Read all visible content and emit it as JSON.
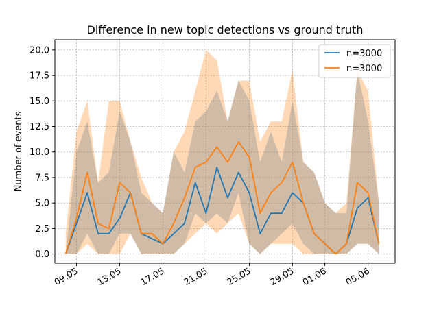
{
  "chart_data": {
    "type": "line",
    "title": "Difference in new topic detections vs ground truth",
    "xlabel": "",
    "ylabel": "Number of events",
    "ylim": [
      -0.9,
      21
    ],
    "xlim": [
      0,
      31.5
    ],
    "x_tick_labels": [
      "09.05",
      "13.05",
      "17.05",
      "21.05",
      "25.05",
      "29.05",
      "01.06",
      "05.06"
    ],
    "x_tick_dates": [
      "2019-05-09",
      "2019-05-13",
      "2019-05-17",
      "2019-05-21",
      "2019-05-25",
      "2019-05-29",
      "2019-06-01",
      "2019-06-05"
    ],
    "y_ticks": [
      0.0,
      2.5,
      5.0,
      7.5,
      10.0,
      12.5,
      15.0,
      17.5,
      20.0
    ],
    "y_tick_labels": [
      "0.0",
      "2.5",
      "5.0",
      "7.5",
      "10.0",
      "12.5",
      "15.0",
      "17.5",
      "20.0"
    ],
    "grid": true,
    "legend_position": "top-right",
    "x": [
      "2019-05-08",
      "2019-05-09",
      "2019-05-10",
      "2019-05-11",
      "2019-05-12",
      "2019-05-13",
      "2019-05-14",
      "2019-05-15",
      "2019-05-16",
      "2019-05-17",
      "2019-05-18",
      "2019-05-19",
      "2019-05-20",
      "2019-05-21",
      "2019-05-22",
      "2019-05-23",
      "2019-05-24",
      "2019-05-25",
      "2019-05-26",
      "2019-05-27",
      "2019-05-28",
      "2019-05-29",
      "2019-05-30",
      "2019-05-31",
      "2019-06-01",
      "2019-06-02",
      "2019-06-03",
      "2019-06-04",
      "2019-06-05",
      "2019-06-06",
      "2019-06-07"
    ],
    "series": [
      {
        "name": "n=3000",
        "color": "#1f77b4",
        "values": [
          0,
          3,
          6,
          2,
          2,
          3.5,
          6,
          2,
          1.5,
          1,
          2,
          3,
          7,
          4,
          8.5,
          5.5,
          8,
          6,
          2,
          4,
          4,
          6,
          5,
          2,
          1,
          0,
          1,
          4.5,
          5.5,
          1,
          null
        ],
        "lower": [
          0,
          0,
          2,
          0,
          0,
          2,
          2,
          0,
          0,
          0,
          0,
          1,
          4,
          3,
          4,
          3,
          6,
          1,
          0,
          1,
          2,
          3,
          1,
          0,
          0,
          0,
          0,
          1,
          1,
          0,
          null
        ],
        "upper": [
          0,
          10,
          13,
          7,
          8,
          14,
          11,
          6,
          5,
          4,
          10,
          8,
          13,
          14,
          16,
          13,
          17,
          15,
          9,
          12,
          9,
          15,
          9,
          8,
          5,
          4,
          4,
          18,
          13,
          5,
          null
        ]
      },
      {
        "name": "n=3000",
        "color": "#ff7f0e",
        "values": [
          0,
          3.5,
          8,
          3,
          2.5,
          7,
          6,
          2,
          2,
          1,
          3,
          5.5,
          8.5,
          9,
          10.5,
          9,
          11,
          9.5,
          4,
          6,
          7,
          9,
          5,
          2,
          1,
          0,
          1,
          7,
          6,
          1,
          null
        ],
        "lower": [
          0,
          0,
          1,
          0,
          0,
          0,
          2,
          0,
          0,
          0,
          0,
          1,
          2,
          3,
          2,
          3,
          4,
          1,
          0,
          1,
          1,
          1,
          0,
          0,
          0,
          0,
          0,
          1,
          1,
          0,
          null
        ],
        "upper": [
          2,
          12,
          15,
          7,
          15,
          15,
          11,
          7.5,
          5,
          4,
          10,
          12,
          16,
          20,
          19,
          13,
          17,
          17,
          11,
          13,
          13,
          18,
          9,
          8,
          5,
          4,
          5,
          18,
          16,
          5,
          null
        ]
      }
    ]
  }
}
